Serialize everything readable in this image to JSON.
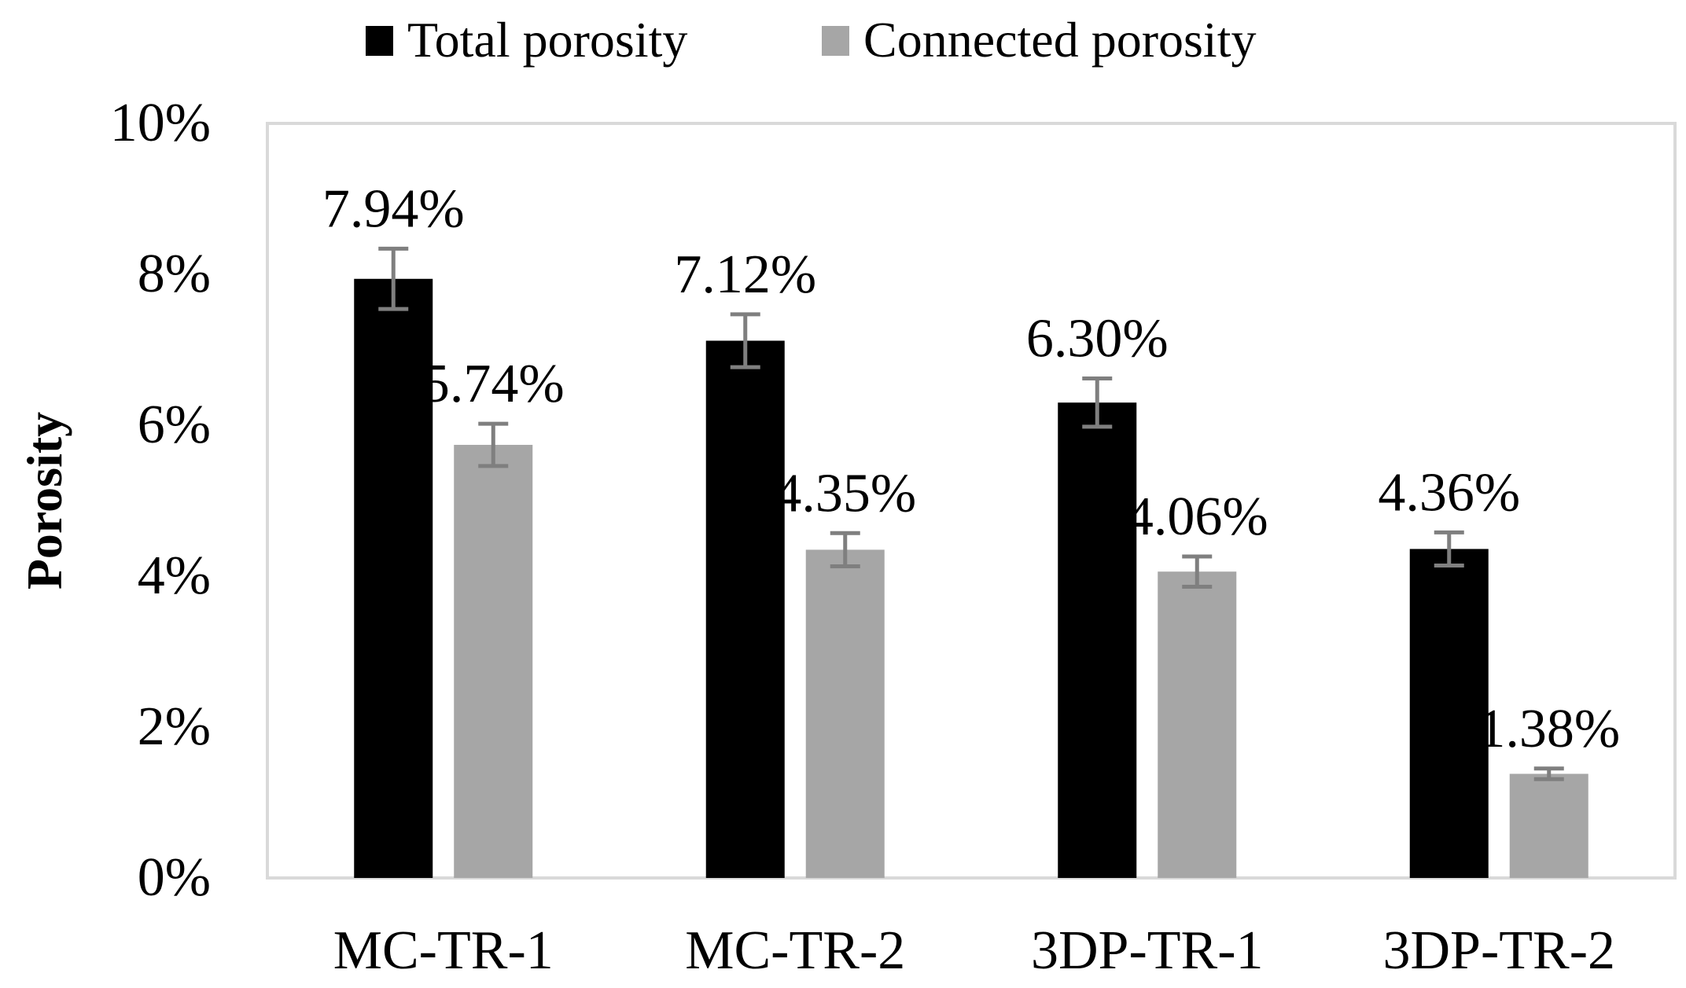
{
  "chart_data": {
    "type": "bar",
    "title": "",
    "xlabel": "",
    "ylabel": "Porosity",
    "ylim": [
      0,
      10
    ],
    "yticks": [
      0,
      2,
      4,
      6,
      8,
      10
    ],
    "ytick_labels": [
      "0%",
      "2%",
      "4%",
      "6%",
      "8%",
      "10%"
    ],
    "categories": [
      "MC-TR-1",
      "MC-TR-2",
      "3DP-TR-1",
      "3DP-TR-2"
    ],
    "series": [
      {
        "name": "Total porosity",
        "color": "#000000",
        "values": [
          7.94,
          7.12,
          6.3,
          4.36
        ],
        "errors": [
          0.4,
          0.35,
          0.32,
          0.22
        ],
        "labels": [
          "7.94%",
          "7.12%",
          "6.30%",
          "4.36%"
        ]
      },
      {
        "name": "Connected porosity",
        "color": "#a6a6a6",
        "values": [
          5.74,
          4.35,
          4.06,
          1.38
        ],
        "errors": [
          0.28,
          0.22,
          0.2,
          0.07
        ],
        "labels": [
          "5.74%",
          "4.35%",
          "4.06%",
          "1.38%"
        ]
      }
    ],
    "error_bar_color": "#7f7f7f",
    "legend_position": "top-center",
    "grid": false
  }
}
